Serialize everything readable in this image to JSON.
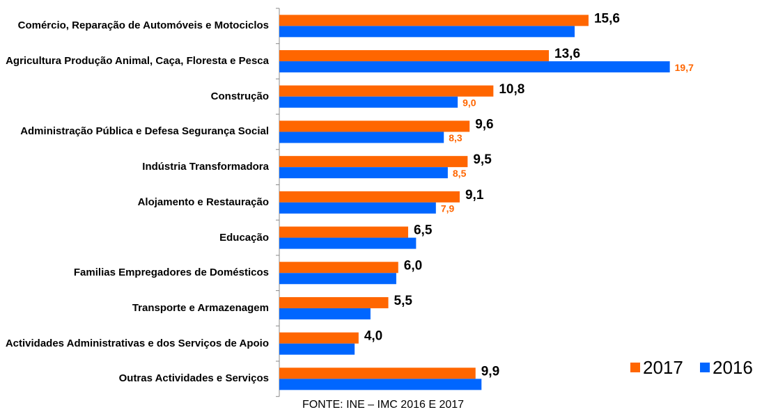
{
  "chart_data": {
    "type": "bar",
    "orientation": "horizontal",
    "categories": [
      "Comércio, Reparação de Automóveis e Motociclos",
      "Agricultura Produção Animal, Caça, Floresta e Pesca",
      "Construção",
      "Administração Pública e Defesa Segurança Social",
      "Indústria Transformadora",
      "Alojamento e Restauração",
      "Educação",
      "Familias Empregadores de Domésticos",
      "Transporte e Armazenagem",
      "Actividades Administrativas e dos Serviços de Apoio",
      "Outras Actividades e Serviços"
    ],
    "series": [
      {
        "name": "2017",
        "color": "#ff6600",
        "values": [
          15.6,
          13.6,
          10.8,
          9.6,
          9.5,
          9.1,
          6.5,
          6.0,
          5.5,
          4.0,
          9.9
        ],
        "value_labels": [
          "15,6",
          "13,6",
          "10,8",
          "9,6",
          "9,5",
          "9,1",
          "6,5",
          "6,0",
          "5,5",
          "4,0",
          "9,9"
        ]
      },
      {
        "name": "2016",
        "color": "#0066ff",
        "values": [
          14.9,
          19.7,
          9.0,
          8.3,
          8.5,
          7.9,
          6.9,
          5.9,
          4.6,
          3.8,
          10.2
        ],
        "value_labels": [
          null,
          "19,7",
          "9,0",
          "8,3",
          "8,5",
          "7,9",
          null,
          null,
          null,
          null,
          null
        ]
      }
    ],
    "xlim": [
      0,
      24
    ],
    "legend": "bottom-right",
    "source": "FONTE: INE – IMC 2016 E 2017"
  }
}
